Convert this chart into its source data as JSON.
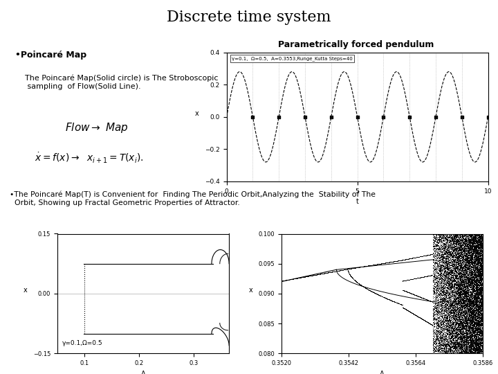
{
  "title": "Discrete time system",
  "title_fontsize": 16,
  "bg_color": "#ffffff",
  "bullet1_bold": "•Poincaré Map",
  "bullet1_text": "The Poincaré Map(Solid circle) is The Stroboscopic\n sampling  of Flow(Solid Line).",
  "bullet2_text": "•The Poincaré Map(T) is Convenient for  Finding The Periodic Orbit,Analyzing the  Stability of The\n  Orbit, Showing up Fractal Geometric Properties of Attractor.",
  "plot1_title": "Parametrically forced pendulum",
  "plot1_xlabel": "t",
  "plot1_ylabel": "x",
  "plot1_annotation": "γ=0.1,  Ω=0.5,  A=0.3553,Runge_Kutta Steps=40",
  "plot1_xlim": [
    0,
    10
  ],
  "plot1_ylim": [
    -0.4,
    0.4
  ],
  "plot1_xticks": [
    0,
    5,
    10
  ],
  "plot1_yticks": [
    -0.4,
    -0.2,
    0.0,
    0.2,
    0.4
  ],
  "plot2_ylabel": "x",
  "plot2_xlabel": "A",
  "plot2_annotation": "γ=0.1,Ω=0.5",
  "plot3_ylabel": "x",
  "plot3_xlabel": "A",
  "plot3_xticks": [
    0.352,
    0.3542,
    0.3564,
    0.3586
  ],
  "plot3_yticks": [
    0.08,
    0.085,
    0.09,
    0.095,
    0.1
  ]
}
